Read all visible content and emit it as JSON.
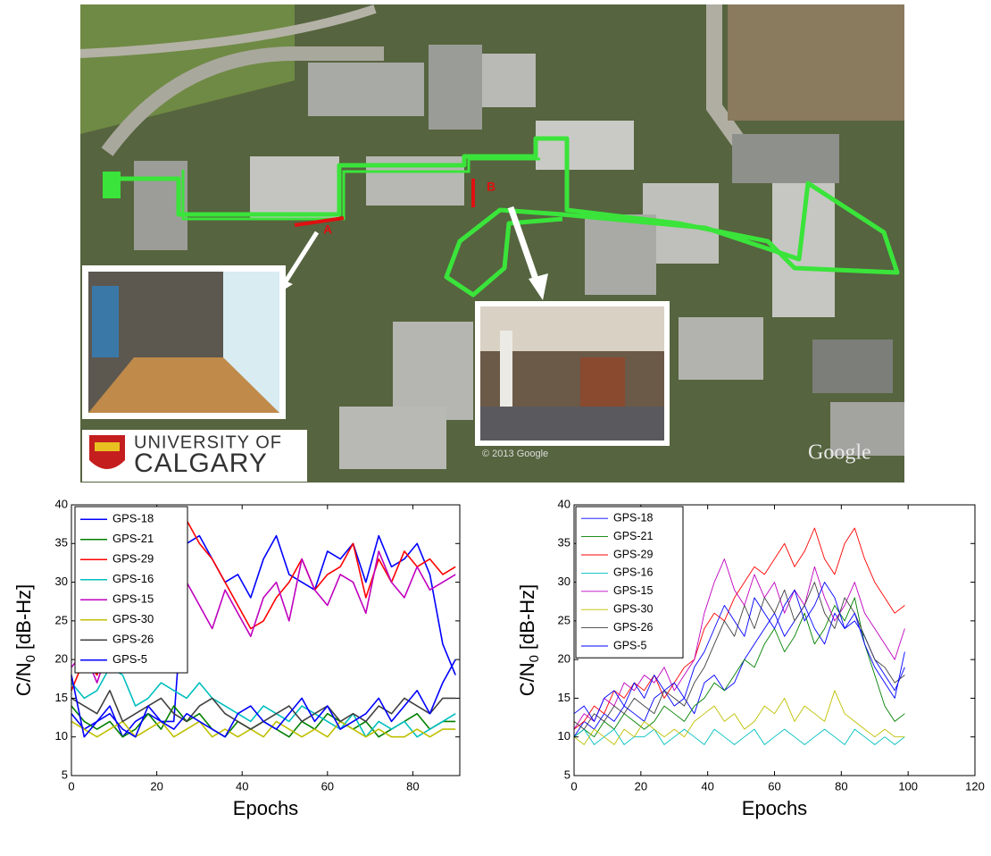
{
  "map": {
    "markers": [
      "A",
      "B"
    ],
    "logo": [
      "UNIVERSITY OF",
      "CALGARY"
    ],
    "watermark": "Google",
    "copyright": "© 2013 Google"
  },
  "chart_data": [
    {
      "type": "line",
      "xlabel": "Epochs",
      "ylabel": [
        "C/N",
        "0",
        "[dB-Hz]"
      ],
      "xlim": [
        0,
        91
      ],
      "xticks": [
        0,
        20,
        40,
        60,
        80
      ],
      "ylim": [
        5,
        40
      ],
      "yticks": [
        5,
        10,
        15,
        20,
        25,
        30,
        35,
        40
      ],
      "legend_loc": "upper left",
      "line_width": 1.6,
      "x": [
        0,
        3,
        6,
        9,
        12,
        15,
        18,
        21,
        24,
        27,
        30,
        33,
        36,
        39,
        42,
        45,
        48,
        51,
        54,
        57,
        60,
        63,
        66,
        69,
        72,
        75,
        78,
        81,
        84,
        87,
        90
      ],
      "series": [
        {
          "name": "GPS-18",
          "color": "#0000ff",
          "values": [
            13,
            11,
            12,
            14,
            10,
            12,
            13,
            12,
            12,
            35,
            36,
            33,
            30,
            31,
            28,
            33,
            36,
            31,
            30,
            29,
            34,
            33,
            35,
            30,
            36,
            32,
            33,
            35,
            31,
            22,
            18
          ]
        },
        {
          "name": "GPS-21",
          "color": "#008000",
          "values": [
            14,
            12,
            11,
            12,
            10,
            11,
            13,
            11,
            14,
            12,
            13,
            11,
            10,
            12,
            11,
            12,
            11,
            10,
            12,
            11,
            13,
            12,
            11,
            12,
            10,
            11,
            12,
            13,
            11,
            12,
            12
          ]
        },
        {
          "name": "GPS-29",
          "color": "#ff0000",
          "values": [
            16,
            20,
            18,
            25,
            30,
            33,
            36,
            37,
            35,
            38,
            35,
            33,
            30,
            27,
            24,
            25,
            28,
            30,
            33,
            29,
            31,
            32,
            35,
            28,
            33,
            30,
            34,
            32,
            33,
            31,
            32
          ]
        },
        {
          "name": "GPS-16",
          "color": "#00bfbf",
          "values": [
            17,
            15,
            16,
            19,
            18,
            14,
            15,
            17,
            16,
            15,
            17,
            15,
            14,
            13,
            12,
            14,
            13,
            12,
            14,
            13,
            12,
            11,
            13,
            10,
            12,
            11,
            12,
            10,
            11,
            12,
            13
          ]
        },
        {
          "name": "GPS-15",
          "color": "#bf00bf",
          "values": [
            19,
            21,
            17,
            22,
            28,
            33,
            36,
            35,
            34,
            30,
            27,
            24,
            29,
            26,
            23,
            28,
            30,
            25,
            33,
            29,
            27,
            31,
            30,
            26,
            34,
            30,
            28,
            32,
            29,
            30,
            31
          ]
        },
        {
          "name": "GPS-30",
          "color": "#bfbf00",
          "values": [
            12,
            11,
            10,
            11,
            12,
            10,
            11,
            12,
            10,
            11,
            12,
            10,
            11,
            10,
            11,
            10,
            12,
            11,
            10,
            11,
            10,
            12,
            11,
            10,
            11,
            10,
            10,
            11,
            10,
            11,
            11
          ]
        },
        {
          "name": "GPS-26",
          "color": "#404040",
          "values": [
            15,
            14,
            13,
            16,
            12,
            13,
            14,
            15,
            13,
            12,
            14,
            15,
            13,
            12,
            11,
            12,
            13,
            14,
            12,
            13,
            14,
            12,
            13,
            12,
            14,
            13,
            15,
            14,
            13,
            15,
            15
          ]
        },
        {
          "name": "GPS-5",
          "color": "#0000ff",
          "values": [
            18,
            10,
            12,
            13,
            11,
            10,
            14,
            12,
            11,
            13,
            12,
            11,
            10,
            13,
            14,
            12,
            11,
            13,
            15,
            12,
            14,
            11,
            12,
            13,
            15,
            12,
            14,
            16,
            13,
            17,
            20
          ]
        }
      ]
    },
    {
      "type": "line",
      "xlabel": "Epochs",
      "ylabel": [
        "C/N",
        "0",
        "[dB-Hz]"
      ],
      "xlim": [
        0,
        120
      ],
      "xticks": [
        0,
        20,
        40,
        60,
        80,
        100,
        120
      ],
      "ylim": [
        5,
        40
      ],
      "yticks": [
        5,
        10,
        15,
        20,
        25,
        30,
        35,
        40
      ],
      "legend_loc": "upper left",
      "line_width": 0.9,
      "x": [
        0,
        3,
        6,
        9,
        12,
        15,
        18,
        21,
        24,
        27,
        30,
        33,
        36,
        39,
        42,
        45,
        48,
        51,
        54,
        57,
        60,
        63,
        66,
        69,
        72,
        75,
        78,
        81,
        84,
        87,
        90,
        93,
        96,
        99
      ],
      "series": [
        {
          "name": "GPS-18",
          "color": "#0000ff",
          "values": [
            10,
            12,
            11,
            13,
            12,
            14,
            13,
            12,
            15,
            16,
            14,
            15,
            13,
            17,
            18,
            16,
            17,
            20,
            22,
            24,
            26,
            23,
            25,
            27,
            24,
            22,
            26,
            24,
            25,
            23,
            20,
            18,
            16,
            19
          ]
        },
        {
          "name": "GPS-21",
          "color": "#008000",
          "values": [
            10,
            11,
            10,
            12,
            11,
            13,
            12,
            11,
            12,
            14,
            13,
            12,
            14,
            15,
            17,
            16,
            18,
            20,
            19,
            22,
            24,
            21,
            23,
            26,
            22,
            24,
            27,
            25,
            28,
            22,
            18,
            14,
            12,
            13
          ]
        },
        {
          "name": "GPS-29",
          "color": "#ff0000",
          "values": [
            11,
            12,
            14,
            13,
            16,
            15,
            17,
            16,
            18,
            15,
            17,
            19,
            20,
            24,
            26,
            25,
            28,
            30,
            32,
            31,
            33,
            35,
            32,
            34,
            37,
            33,
            31,
            35,
            37,
            33,
            30,
            28,
            26,
            27
          ]
        },
        {
          "name": "GPS-16",
          "color": "#00bfbf",
          "values": [
            10,
            11,
            9,
            10,
            11,
            9,
            10,
            10,
            11,
            9,
            10,
            11,
            10,
            9,
            11,
            10,
            9,
            10,
            11,
            9,
            10,
            11,
            10,
            9,
            10,
            11,
            10,
            9,
            11,
            10,
            9,
            10,
            9,
            10
          ]
        },
        {
          "name": "GPS-15",
          "color": "#bf00bf",
          "values": [
            11,
            13,
            12,
            15,
            14,
            17,
            16,
            18,
            17,
            19,
            16,
            18,
            20,
            26,
            30,
            33,
            29,
            27,
            31,
            28,
            30,
            26,
            29,
            27,
            32,
            28,
            25,
            27,
            30,
            26,
            24,
            22,
            20,
            24
          ]
        },
        {
          "name": "GPS-30",
          "color": "#bfbf00",
          "values": [
            10,
            9,
            11,
            10,
            9,
            11,
            10,
            12,
            11,
            10,
            11,
            10,
            12,
            13,
            14,
            12,
            13,
            11,
            12,
            14,
            13,
            15,
            12,
            14,
            13,
            12,
            16,
            13,
            12,
            11,
            10,
            11,
            10,
            10
          ]
        },
        {
          "name": "GPS-26",
          "color": "#404040",
          "values": [
            12,
            11,
            13,
            12,
            14,
            13,
            15,
            14,
            13,
            16,
            15,
            14,
            17,
            19,
            22,
            25,
            23,
            27,
            24,
            28,
            26,
            29,
            25,
            27,
            30,
            26,
            24,
            28,
            26,
            23,
            20,
            19,
            17,
            18
          ]
        },
        {
          "name": "GPS-5",
          "color": "#0000ff",
          "values": [
            13,
            14,
            12,
            15,
            16,
            14,
            17,
            15,
            18,
            16,
            17,
            15,
            19,
            21,
            24,
            27,
            25,
            23,
            28,
            26,
            24,
            27,
            29,
            25,
            27,
            30,
            28,
            24,
            26,
            22,
            19,
            17,
            15,
            21
          ]
        }
      ]
    }
  ]
}
